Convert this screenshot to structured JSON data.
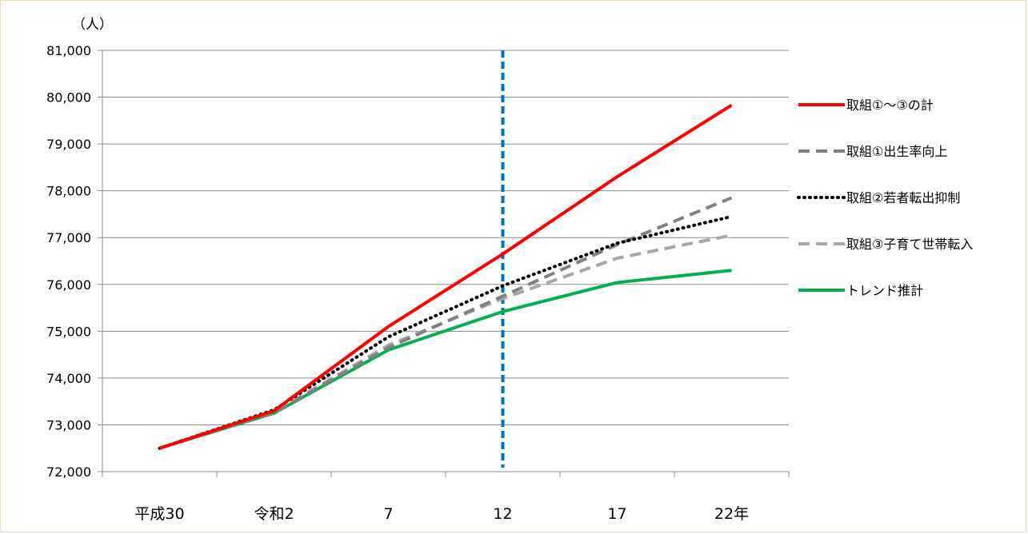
{
  "chart_data": {
    "type": "line",
    "y_unit_label": "（人）",
    "categories": [
      "平成30",
      "令和2",
      "7",
      "12",
      "17",
      "22年"
    ],
    "ylim": [
      72000,
      81000
    ],
    "yticks": [
      72000,
      73000,
      74000,
      75000,
      76000,
      77000,
      78000,
      79000,
      80000,
      81000
    ],
    "ytick_labels": [
      "72,000",
      "73,000",
      "74,000",
      "75,000",
      "76,000",
      "77,000",
      "78,000",
      "79,000",
      "80,000",
      "81,000"
    ],
    "grid": true,
    "legend_position": "right",
    "reference_line": {
      "category": "12",
      "color": "#0070c0",
      "style": "dashed"
    },
    "series": [
      {
        "name": "取組①～③の計",
        "color": "#ff0000",
        "style": "solid",
        "values": [
          72500,
          73300,
          75100,
          76650,
          78300,
          79830
        ]
      },
      {
        "name": "取組①出生率向上",
        "color": "#808080",
        "style": "dash",
        "values": [
          72500,
          73260,
          74650,
          75750,
          76850,
          77850
        ]
      },
      {
        "name": "取組②若者転出抑制",
        "color": "#000000",
        "style": "dot",
        "values": [
          72500,
          73320,
          74880,
          75970,
          76880,
          77450
        ]
      },
      {
        "name": "取組③子育て世帯転入",
        "color": "#a6a6a6",
        "style": "dash",
        "values": [
          72500,
          73270,
          74700,
          75700,
          76560,
          77050
        ]
      },
      {
        "name": "トレンド推計",
        "color": "#00b050",
        "style": "solid",
        "values": [
          72500,
          73250,
          74600,
          75420,
          76040,
          76300
        ]
      }
    ]
  }
}
